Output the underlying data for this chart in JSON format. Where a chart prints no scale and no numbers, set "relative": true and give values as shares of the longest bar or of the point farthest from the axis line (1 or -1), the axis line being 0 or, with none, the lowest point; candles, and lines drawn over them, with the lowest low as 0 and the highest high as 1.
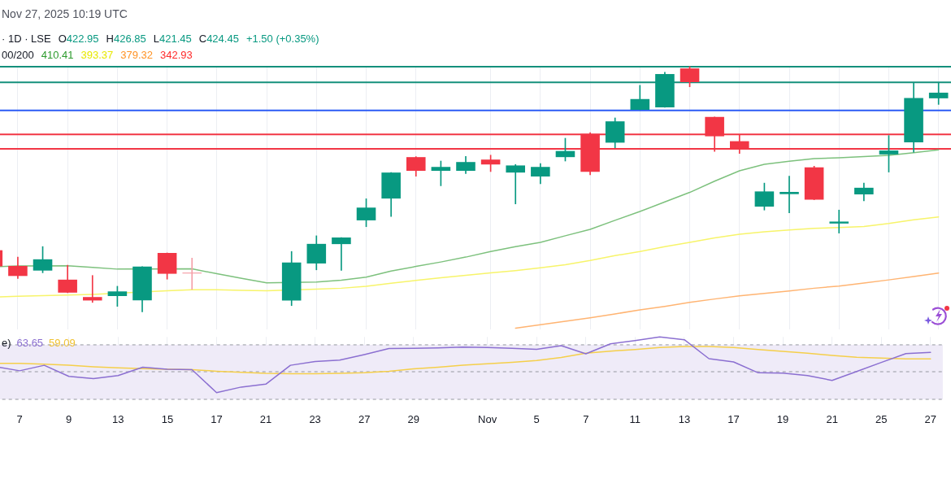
{
  "chart_data": [
    {
      "type": "candlestick",
      "relative": true,
      "categories": [
        null,
        null,
        null,
        null,
        null,
        null,
        null,
        null,
        null,
        null,
        null,
        null,
        null,
        null,
        null,
        null,
        null,
        null,
        null,
        null,
        null,
        null,
        null,
        null,
        null,
        null,
        null,
        null,
        null,
        null,
        null,
        null,
        null,
        null,
        null,
        null,
        null,
        null,
        null
      ],
      "ohlc": [
        [
          0.251,
          0.251,
          0.185,
          0.185
        ],
        [
          0.187,
          0.223,
          0.136,
          0.146
        ],
        [
          0.168,
          0.266,
          0.159,
          0.214
        ],
        [
          0.131,
          0.19,
          0.078,
          0.078
        ],
        [
          0.06,
          0.148,
          0.038,
          0.046
        ],
        [
          0.064,
          0.104,
          0.022,
          0.083
        ],
        [
          0.047,
          0.184,
          0.0,
          0.184
        ],
        [
          0.24,
          0.24,
          0.133,
          0.155
        ],
        [
          0.16,
          0.219,
          0.091,
          0.156
        ],
        null,
        null,
        null,
        [
          0.046,
          0.246,
          0.025,
          0.201
        ],
        [
          0.197,
          0.31,
          0.171,
          0.277
        ],
        [
          0.276,
          0.303,
          0.169,
          0.303
        ],
        [
          0.373,
          0.461,
          0.347,
          0.425
        ],
        [
          0.462,
          0.568,
          0.389,
          0.568
        ],
        [
          0.631,
          0.633,
          0.553,
          0.575
        ],
        [
          0.575,
          0.615,
          0.514,
          0.591
        ],
        [
          0.575,
          0.634,
          0.564,
          0.611
        ],
        [
          0.621,
          0.639,
          0.572,
          0.601
        ],
        [
          0.568,
          0.601,
          0.44,
          0.597
        ],
        [
          0.552,
          0.605,
          0.522,
          0.591
        ],
        [
          0.631,
          0.708,
          0.615,
          0.656
        ],
        [
          0.725,
          0.731,
          0.559,
          0.571
        ],
        [
          0.69,
          0.791,
          0.669,
          0.777
        ],
        [
          0.824,
          0.924,
          0.824,
          0.868
        ],
        [
          0.834,
          0.977,
          0.834,
          0.97
        ],
        [
          0.993,
          1.0,
          0.918,
          0.937
        ],
        [
          0.795,
          0.795,
          0.654,
          0.716
        ],
        [
          0.696,
          0.722,
          0.646,
          0.667
        ],
        [
          0.429,
          0.525,
          0.415,
          0.491
        ],
        [
          0.48,
          0.553,
          0.404,
          0.489
        ],
        [
          0.589,
          0.594,
          0.457,
          0.457
        ],
        [
          0.36,
          0.415,
          0.321,
          0.368
        ],
        [
          0.479,
          0.525,
          0.453,
          0.506
        ],
        [
          0.642,
          0.719,
          0.57,
          0.658
        ],
        [
          0.691,
          0.933,
          0.651,
          0.872
        ],
        [
          0.871,
          0.933,
          0.846,
          0.894
        ]
      ],
      "colors": [
        "#f23645",
        "#f23645",
        "#089981",
        "#f23645",
        "#f23645",
        "#089981",
        "#089981",
        "#f23645",
        "#f5a0a8",
        null,
        null,
        null,
        "#089981",
        "#089981",
        "#089981",
        "#089981",
        "#089981",
        "#f23645",
        "#089981",
        "#089981",
        "#f23645",
        "#089981",
        "#089981",
        "#089981",
        "#f23645",
        "#089981",
        "#089981",
        "#089981",
        "#f23645",
        "#f23645",
        "#f23645",
        "#089981",
        "#089981",
        "#f23645",
        "#089981",
        "#089981",
        "#089981",
        "#089981",
        "#089981"
      ],
      "series": [
        {
          "type": "line",
          "color": "#7dc17d",
          "values": [
            0.183,
            0.187,
            null,
            0.188,
            0.181,
            0.174,
            null,
            null,
            0.175,
            0.155,
            0.136,
            0.118,
            null,
            0.121,
            0.129,
            0.141,
            0.166,
            0.185,
            0.203,
            0.223,
            0.246,
            0.266,
            0.283,
            0.31,
            0.336,
            0.373,
            0.409,
            0.448,
            0.487,
            0.533,
            0.575,
            0.602,
            0.614,
            0.625,
            0.628,
            0.633,
            0.638,
            0.649,
            0.661
          ]
        },
        {
          "type": "line",
          "color": "#f7f46a",
          "values": [
            0.06,
            0.063,
            0.066,
            0.068,
            0.071,
            null,
            null,
            0.086,
            0.09,
            0.09,
            0.087,
            0.086,
            null,
            0.092,
            0.096,
            0.104,
            0.116,
            0.128,
            0.139,
            0.149,
            0.159,
            0.168,
            0.179,
            0.192,
            0.209,
            0.229,
            0.246,
            0.266,
            0.283,
            0.301,
            0.316,
            0.326,
            0.334,
            0.34,
            0.344,
            0.348,
            0.36,
            0.375,
            0.387
          ]
        },
        {
          "type": "line",
          "color": "#ffb472",
          "values": [
            null,
            null,
            null,
            null,
            null,
            null,
            null,
            null,
            null,
            null,
            null,
            null,
            null,
            null,
            null,
            null,
            null,
            null,
            null,
            null,
            null,
            -0.067,
            -0.053,
            -0.039,
            -0.025,
            -0.009,
            0.008,
            0.022,
            0.038,
            0.052,
            0.065,
            0.075,
            0.085,
            0.096,
            0.105,
            0.117,
            0.13,
            0.144,
            0.158
          ]
        }
      ],
      "ref_lines": [
        {
          "axis": "y",
          "value": 1,
          "color": "#14907c"
        },
        {
          "axis": "y",
          "value": 0.936,
          "color": "#14907c"
        },
        {
          "axis": "y",
          "value": 0.822,
          "color": "#2b5bf5"
        },
        {
          "axis": "y",
          "value": 0.724,
          "color": "#f23645"
        },
        {
          "axis": "y",
          "value": 0.665,
          "color": "#f23645"
        }
      ],
      "grid": "x",
      "tick_labels": false,
      "annotations": [
        "Nov 27, 2025 10:19 UTC",
        "· 1D · LSE",
        "O422.95",
        "H426.85",
        "L421.45",
        "C424.45",
        "+1.50 (+0.35%)",
        "00/200",
        "410.41",
        "393.37",
        "379.32",
        "342.93"
      ]
    },
    {
      "type": "line",
      "relative": true,
      "categories": [
        null,
        "7",
        null,
        "9",
        null,
        "13",
        null,
        "15",
        null,
        "17",
        null,
        "21",
        null,
        "23",
        null,
        "27",
        null,
        "29",
        null,
        null,
        "Nov",
        null,
        "5",
        null,
        "7",
        null,
        "11",
        null,
        "13",
        null,
        "17",
        null,
        "19",
        null,
        "21",
        null,
        "25",
        null,
        "27"
      ],
      "series": [
        {
          "color": "#8b6fd1",
          "values": [
            0.525,
            0.458,
            0.546,
            0.369,
            0.332,
            0.381,
            0.516,
            0.481,
            0.476,
            0.108,
            0.197,
            0.244,
            0.546,
            0.606,
            0.63,
            0.718,
            0.814,
            0.819,
            0.825,
            0.837,
            0.831,
            0.819,
            0.802,
            0.86,
            0.73,
            0.89,
            0.943,
            1,
            0.956,
            0.652,
            0.6,
            0.426,
            0.421,
            0.382,
            0.304,
            0.447,
            0.591,
            0.734,
            0.752
          ]
        },
        {
          "color": "#f5cf4a",
          "values": [
            0.576,
            0.576,
            0.565,
            0.546,
            0.523,
            0.505,
            0.493,
            0.481,
            0.476,
            0.451,
            0.434,
            0.416,
            0.411,
            0.411,
            0.416,
            0.428,
            0.451,
            0.488,
            0.516,
            0.546,
            0.57,
            0.593,
            0.623,
            0.671,
            0.739,
            0.773,
            0.799,
            0.831,
            0.847,
            0.847,
            0.831,
            0.799,
            0.769,
            0.739,
            0.704,
            0.674,
            0.661,
            0.648,
            0.648
          ]
        }
      ],
      "bands": [
        {
          "axis": "y",
          "from": 0,
          "to": 0.874,
          "color": "#efebf8"
        }
      ],
      "ref_lines": [
        {
          "axis": "y",
          "value": 0.874,
          "color": "#9598a1",
          "line_style": "dashed"
        },
        {
          "axis": "y",
          "value": 0.443,
          "color": "#9598a1",
          "line_style": "dashed"
        },
        {
          "axis": "y",
          "value": 0,
          "color": "#9598a1",
          "line_style": "dashed"
        }
      ],
      "grid": "x",
      "tick_labels": "x",
      "annotations": [
        "e)",
        "63.65",
        "59.09"
      ]
    }
  ]
}
